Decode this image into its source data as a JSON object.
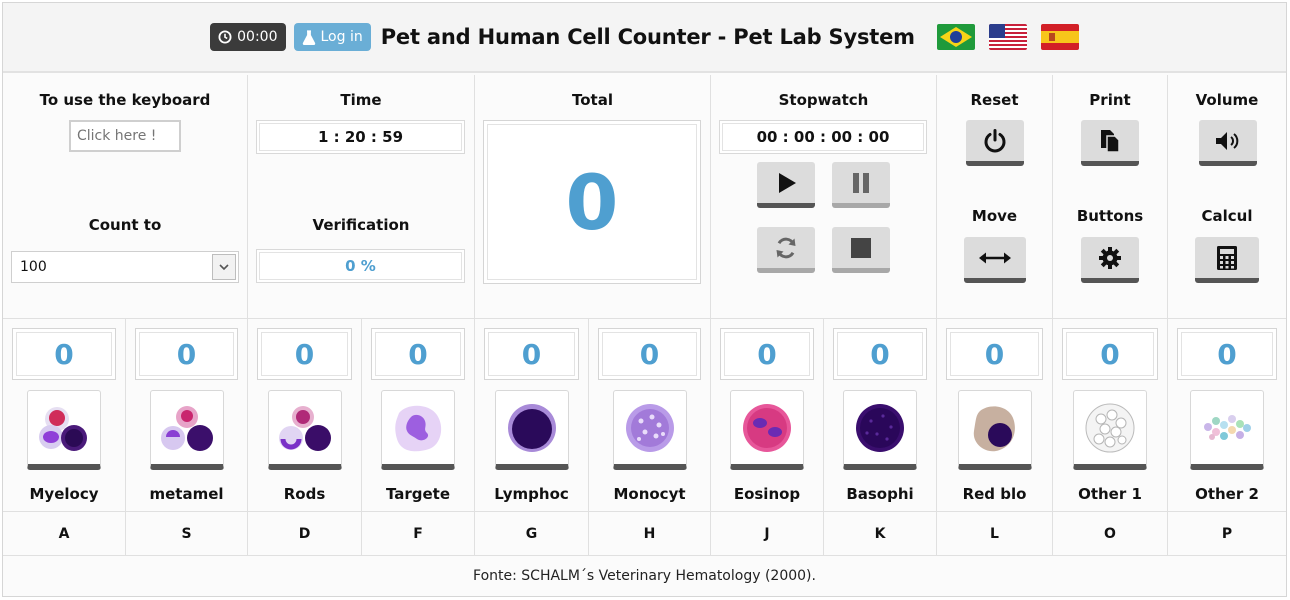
{
  "header": {
    "timer": "00:00",
    "login_label": "Log in",
    "title": "Pet and Human Cell Counter - Pet Lab System",
    "flags": [
      "brazil-flag",
      "usa-flag",
      "spain-flag"
    ]
  },
  "controls": {
    "keyboard_label": "To use the keyboard",
    "keyboard_placeholder": "Click here !",
    "count_to_label": "Count to",
    "count_to_value": "100",
    "time_label": "Time",
    "time_value": "1 : 20 : 59",
    "verification_label": "Verification",
    "verification_value": "0 %",
    "total_label": "Total",
    "total_value": "0",
    "stopwatch_label": "Stopwatch",
    "stopwatch_value": "00 : 00 : 00 : 00",
    "reset_label": "Reset",
    "print_label": "Print",
    "volume_label": "Volume",
    "move_label": "Move",
    "buttons_label": "Buttons",
    "calcul_label": "Calcul"
  },
  "cells": [
    {
      "name": "Myelocy",
      "count": "0",
      "key": "A"
    },
    {
      "name": "metamel",
      "count": "0",
      "key": "S"
    },
    {
      "name": "Rods",
      "count": "0",
      "key": "D"
    },
    {
      "name": "Targete",
      "count": "0",
      "key": "F"
    },
    {
      "name": "Lymphoc",
      "count": "0",
      "key": "G"
    },
    {
      "name": "Monocyt",
      "count": "0",
      "key": "H"
    },
    {
      "name": "Eosinop",
      "count": "0",
      "key": "J"
    },
    {
      "name": "Basophi",
      "count": "0",
      "key": "K"
    },
    {
      "name": "Red blo",
      "count": "0",
      "key": "L"
    },
    {
      "name": "Other 1",
      "count": "0",
      "key": "O"
    },
    {
      "name": "Other 2",
      "count": "0",
      "key": "P"
    }
  ],
  "footer": "Fonte: SCHALM´s Veterinary Hematology (2000).",
  "colors": {
    "accent": "#4f9fd0",
    "login": "#6aaed6",
    "timer_bg": "#3b3b3b"
  }
}
